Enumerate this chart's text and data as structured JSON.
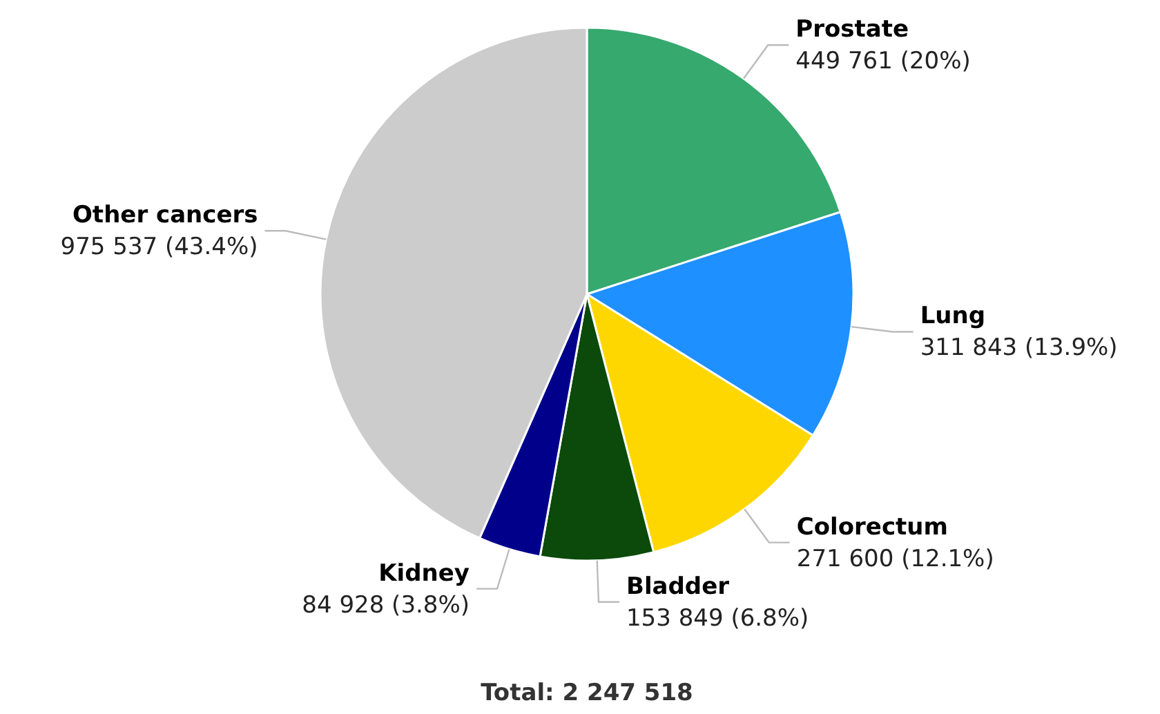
{
  "chart_data": {
    "type": "pie",
    "categories": [
      "Prostate",
      "Lung",
      "Colorectum",
      "Bladder",
      "Kidney",
      "Other cancers"
    ],
    "values": [
      449761,
      311843,
      271600,
      153849,
      84928,
      975537
    ],
    "value_labels": [
      "449 761 (20%)",
      "311 843 (13.9%)",
      "271 600 (12.1%)",
      "153 849 (6.8%)",
      "84 928 (3.8%)",
      "975 537 (43.4%)"
    ],
    "colors": [
      "#36a96e",
      "#1e90ff",
      "#ffd700",
      "#0b4a0b",
      "#00008b",
      "#cccccc"
    ],
    "annotations": [
      "Total: 2 247 518"
    ]
  }
}
